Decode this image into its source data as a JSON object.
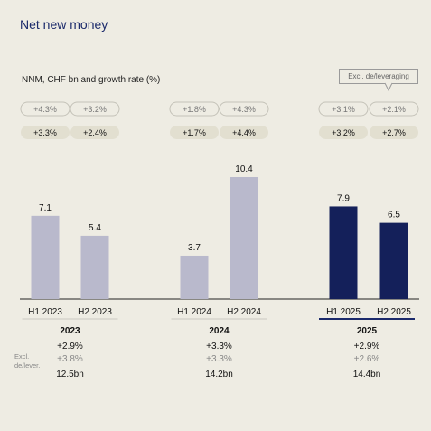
{
  "title": "Net new money",
  "subtitle": "NNM, CHF bn and growth rate (%)",
  "excl_box_label": "Excl. de/leveraging",
  "colors": {
    "bar_past": "#b9b9cc",
    "bar_current": "#14205a",
    "pill_grey": "#e2dfd0",
    "accent": "#1b2a6b"
  },
  "chart_data": {
    "type": "bar",
    "categories": [
      "H1 2023",
      "H2 2023",
      "H1 2024",
      "H2 2024",
      "H1 2025",
      "H2 2025"
    ],
    "values": [
      7.1,
      5.4,
      3.7,
      10.4,
      7.9,
      6.5
    ],
    "value_labels": [
      "7.1",
      "5.4",
      "3.7",
      "10.4",
      "7.9",
      "6.5"
    ],
    "highlight": [
      false,
      false,
      false,
      false,
      true,
      true
    ],
    "growth_excl": [
      "+4.3%",
      "+3.2%",
      "+1.8%",
      "+4.3%",
      "+3.1%",
      "+2.1%"
    ],
    "growth": [
      "+3.3%",
      "+2.4%",
      "+1.7%",
      "+4.4%",
      "+3.2%",
      "+2.7%"
    ],
    "ylim": [
      0,
      10.4
    ]
  },
  "years": [
    {
      "year": "2023",
      "growth": "+2.9%",
      "excl": "+3.8%",
      "total": "12.5bn"
    },
    {
      "year": "2024",
      "growth": "+3.3%",
      "excl": "+3.3%",
      "total": "14.2bn"
    },
    {
      "year": "2025",
      "growth": "+2.9%",
      "excl": "+2.6%",
      "total": "14.4bn"
    }
  ],
  "excl_label_line1": "Excl.",
  "excl_label_line2": "de/lever."
}
